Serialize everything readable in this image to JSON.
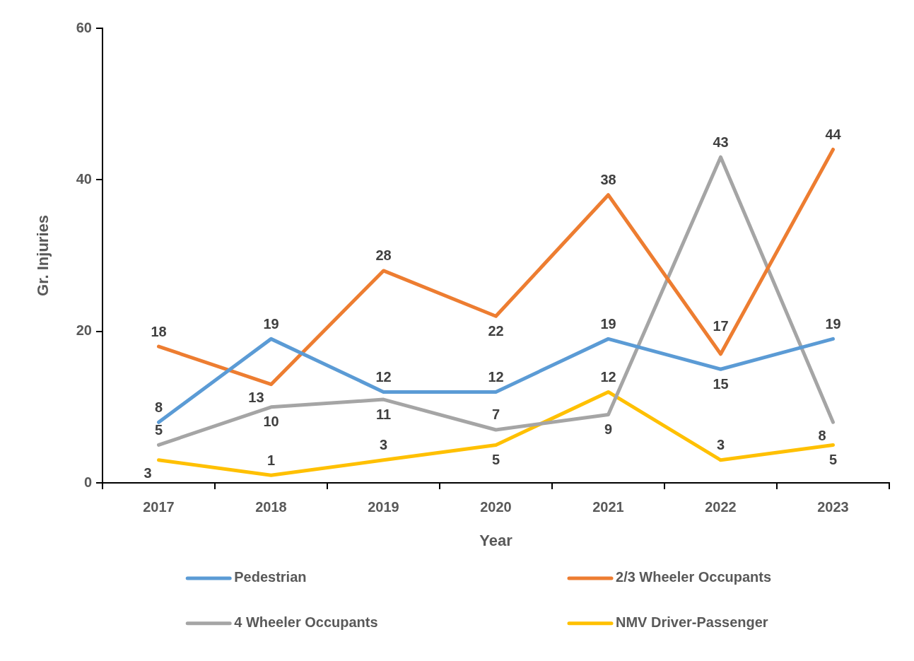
{
  "chart_data": {
    "type": "line",
    "xlabel": "Year",
    "ylabel": "Gr. Injuries",
    "categories": [
      "2017",
      "2018",
      "2019",
      "2020",
      "2021",
      "2022",
      "2023"
    ],
    "series": [
      {
        "name": "Pedestrian",
        "color": "#5b9bd5",
        "values": [
          8,
          19,
          12,
          12,
          19,
          15,
          19
        ]
      },
      {
        "name": "2/3 Wheeler Occupants",
        "color": "#ed7d31",
        "values": [
          18,
          13,
          28,
          22,
          38,
          17,
          44
        ]
      },
      {
        "name": "4 Wheeler Occupants",
        "color": "#a5a5a5",
        "values": [
          5,
          10,
          11,
          7,
          9,
          43,
          8
        ]
      },
      {
        "name": "NMV Driver-Passenger",
        "color": "#ffc000",
        "values": [
          3,
          1,
          3,
          5,
          12,
          3,
          5
        ]
      }
    ],
    "ylim": [
      0,
      60
    ],
    "yticks": [
      0,
      20,
      40,
      60
    ],
    "legend": "bottom",
    "data_labels": true
  }
}
